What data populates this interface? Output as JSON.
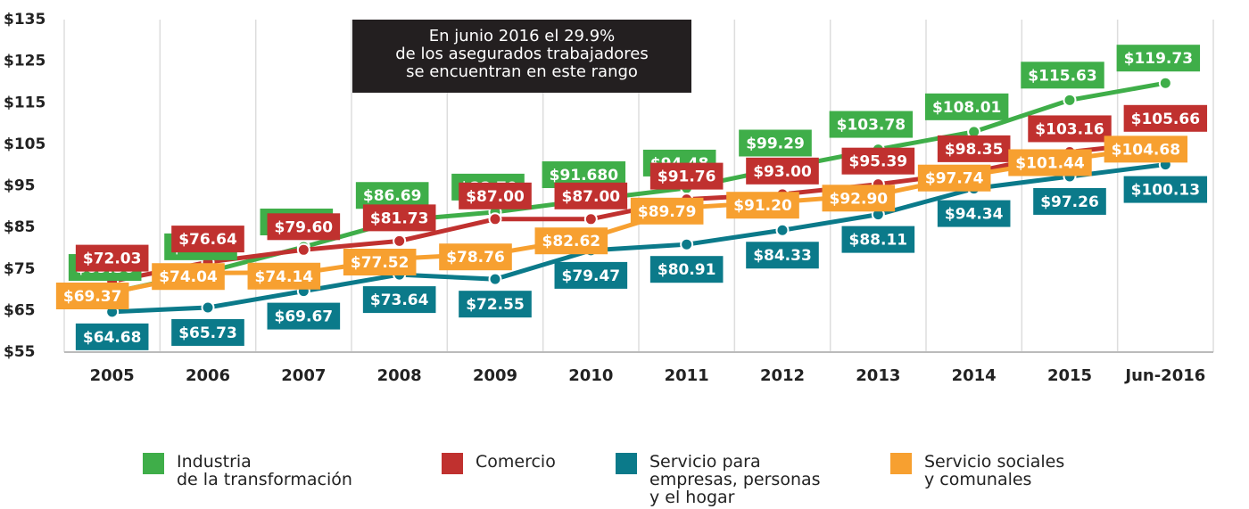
{
  "chart_data": {
    "type": "line",
    "annotation": [
      "En junio 2016 el 29.9%",
      "de los asegurados trabajadores",
      "se encuentran en este rango"
    ],
    "categories": [
      "2005",
      "2006",
      "2007",
      "2008",
      "2009",
      "2010",
      "2011",
      "2012",
      "2013",
      "2014",
      "2015",
      "Jun-2016"
    ],
    "ylim": [
      55,
      135
    ],
    "yticks": [
      {
        "value": 55,
        "label": "$55"
      },
      {
        "value": 65,
        "label": "$65"
      },
      {
        "value": 75,
        "label": "$75"
      },
      {
        "value": 85,
        "label": "$85"
      },
      {
        "value": 95,
        "label": "$95"
      },
      {
        "value": 105,
        "label": "$105"
      },
      {
        "value": 115,
        "label": "$115"
      },
      {
        "value": 125,
        "label": "$125"
      },
      {
        "value": 135,
        "label": "$135"
      }
    ],
    "series": [
      {
        "name": "Industria\nde la transformación",
        "color": "#3fae49",
        "values": [
          69.36,
          74.33,
          80.31,
          86.69,
          88.7,
          91.68,
          94.48,
          99.29,
          103.78,
          108.01,
          115.63,
          119.73
        ],
        "value_labels": [
          "$69.36",
          "$74.33",
          "$80.31",
          "$86.69",
          "$88.70",
          "$91.680",
          "$94.48",
          "$99.29",
          "$103.78",
          "$108.01",
          "$115.63",
          "$119.73"
        ]
      },
      {
        "name": "Comercio",
        "color": "#c0312f",
        "values": [
          72.03,
          76.64,
          79.6,
          81.73,
          87.0,
          87.0,
          91.76,
          93.0,
          95.39,
          98.35,
          103.16,
          105.66
        ],
        "value_labels": [
          "$72.03",
          "$76.64",
          "$79.60",
          "$81.73",
          "$87.00",
          "$87.00",
          "$91.76",
          "$93.00",
          "$95.39",
          "$98.35",
          "$103.16",
          "$105.66"
        ]
      },
      {
        "name": "Servicio para\nempresas, personas\ny el hogar",
        "color": "#0b7a8a",
        "values": [
          64.68,
          65.73,
          69.67,
          73.64,
          72.55,
          79.47,
          80.91,
          84.33,
          88.11,
          94.34,
          97.26,
          100.13
        ],
        "value_labels": [
          "$64.68",
          "$65.73",
          "$69.67",
          "$73.64",
          "$72.55",
          "$79.47",
          "$80.91",
          "$84.33",
          "$88.11",
          "$94.34",
          "$97.26",
          "$100.13"
        ]
      },
      {
        "name": "Servicio sociales\ny comunales",
        "color": "#f7a030",
        "values": [
          69.37,
          74.04,
          74.14,
          77.52,
          78.76,
          82.62,
          89.79,
          91.2,
          92.9,
          97.74,
          101.44,
          104.68
        ],
        "value_labels": [
          "$69.37",
          "$74.04",
          "$74.14",
          "$77.52",
          "$78.76",
          "$82.62",
          "$89.79",
          "$91.20",
          "$92.90",
          "$97.74",
          "$101.44",
          "$104.68"
        ]
      }
    ]
  }
}
